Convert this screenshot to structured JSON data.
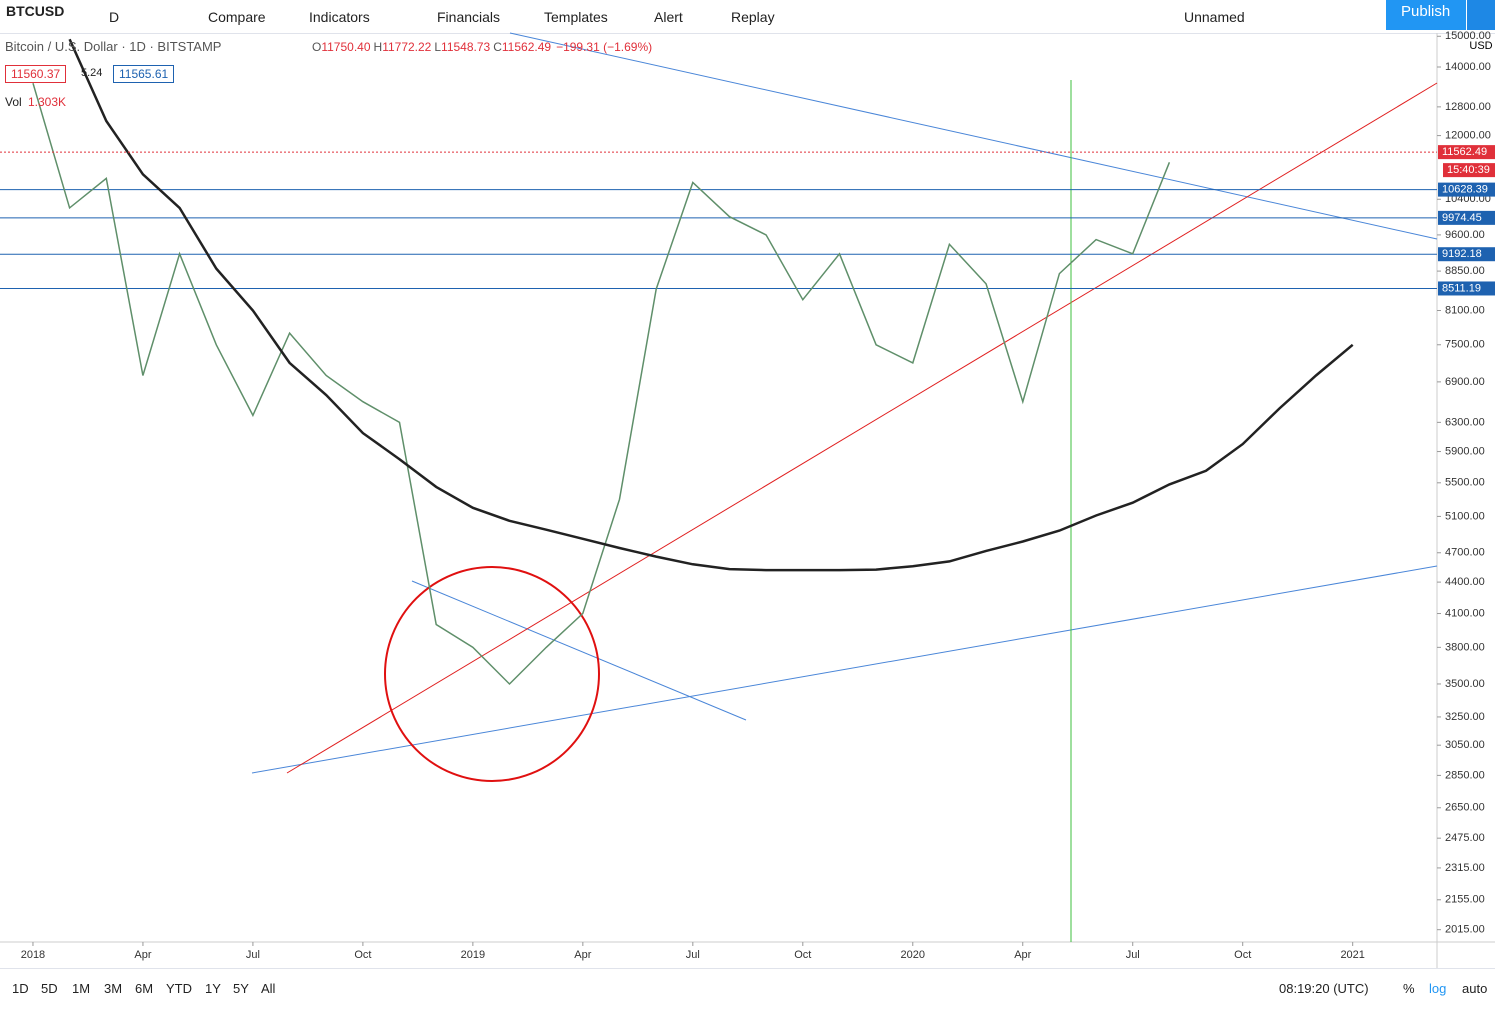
{
  "toolbar": {
    "symbol": "BTCUSD",
    "interval": "D",
    "items": [
      "Compare",
      "Indicators",
      "Financials",
      "Templates",
      "Alert",
      "Replay"
    ],
    "layout_name": "Unnamed",
    "publish": "Publish"
  },
  "legend": {
    "title": "Bitcoin / U.S. Dollar · 1D · BITSTAMP",
    "ohlc": [
      {
        "key": "O",
        "value": "11750.40"
      },
      {
        "key": "H",
        "value": "11772.22"
      },
      {
        "key": "L",
        "value": "11548.73"
      },
      {
        "key": "C",
        "value": "11562.49"
      }
    ],
    "change": "−199.31 (−1.69%)",
    "bid": "11560.37",
    "spread": "5.24",
    "ask": "11565.61",
    "vol_label": "Vol",
    "vol_value": "1.303K",
    "currency": "USD"
  },
  "chart_data": {
    "type": "line",
    "log_scale": true,
    "grid": false,
    "x": [
      "2018-01",
      "2018-02",
      "2018-03",
      "2018-04",
      "2018-05",
      "2018-06",
      "2018-07",
      "2018-08",
      "2018-09",
      "2018-10",
      "2018-11",
      "2018-12",
      "2019-01",
      "2019-02",
      "2019-03",
      "2019-04",
      "2019-05",
      "2019-06",
      "2019-07",
      "2019-08",
      "2019-09",
      "2019-10",
      "2019-11",
      "2019-12",
      "2020-01",
      "2020-02",
      "2020-03",
      "2020-04",
      "2020-05",
      "2020-06",
      "2020-07",
      "2020-08",
      "2020-09",
      "2020-10",
      "2020-11",
      "2020-12",
      "2021-01"
    ],
    "series": [
      {
        "name": "BTCUSD",
        "color": "#5f8f6a",
        "values": [
          13500,
          10200,
          10900,
          7000,
          9200,
          7500,
          6400,
          7700,
          7000,
          6600,
          6300,
          4000,
          3800,
          3500,
          3800,
          4100,
          5300,
          8500,
          10800,
          10000,
          9600,
          8300,
          9200,
          7500,
          7200,
          9400,
          8600,
          6600,
          8800,
          9500,
          9200,
          11300,
          null,
          null,
          null,
          null,
          null
        ]
      },
      {
        "name": "MA",
        "color": "#222222",
        "values": [
          null,
          14900,
          12400,
          11000,
          10200,
          8900,
          8100,
          7200,
          6700,
          6150,
          5800,
          5450,
          5200,
          5050,
          4950,
          4850,
          4750,
          4660,
          4580,
          4530,
          4520,
          4520,
          4520,
          4525,
          4560,
          4610,
          4720,
          4820,
          4940,
          5110,
          5260,
          5480,
          5650,
          6000,
          6500,
          7000,
          7500
        ]
      }
    ],
    "xlim": [
      "2017-12",
      "2021-03"
    ],
    "ylim": [
      1960,
      15111
    ],
    "xticks": [
      {
        "value": "2018-01",
        "label": "2018"
      },
      {
        "value": "2018-04",
        "label": "Apr"
      },
      {
        "value": "2018-07",
        "label": "Jul"
      },
      {
        "value": "2018-10",
        "label": "Oct"
      },
      {
        "value": "2019-01",
        "label": "2019"
      },
      {
        "value": "2019-04",
        "label": "Apr"
      },
      {
        "value": "2019-07",
        "label": "Jul"
      },
      {
        "value": "2019-10",
        "label": "Oct"
      },
      {
        "value": "2020-01",
        "label": "2020"
      },
      {
        "value": "2020-04",
        "label": "Apr"
      },
      {
        "value": "2020-07",
        "label": "Jul"
      },
      {
        "value": "2020-10",
        "label": "Oct"
      },
      {
        "value": "2021-01",
        "label": "2021"
      }
    ],
    "yticks": [
      {
        "value": 15000,
        "label": "15000.00"
      },
      {
        "value": 14000,
        "label": "14000.00"
      },
      {
        "value": 12800,
        "label": "12800.00"
      },
      {
        "value": 12000,
        "label": "12000.00"
      },
      {
        "value": 10400,
        "label": "10400.00"
      },
      {
        "value": 9600,
        "label": "9600.00"
      },
      {
        "value": 8850,
        "label": "8850.00"
      },
      {
        "value": 8100,
        "label": "8100.00"
      },
      {
        "value": 7500,
        "label": "7500.00"
      },
      {
        "value": 6900,
        "label": "6900.00"
      },
      {
        "value": 6300,
        "label": "6300.00"
      },
      {
        "value": 5900,
        "label": "5900.00"
      },
      {
        "value": 5500,
        "label": "5500.00"
      },
      {
        "value": 5100,
        "label": "5100.00"
      },
      {
        "value": 4700,
        "label": "4700.00"
      },
      {
        "value": 4400,
        "label": "4400.00"
      },
      {
        "value": 4100,
        "label": "4100.00"
      },
      {
        "value": 3800,
        "label": "3800.00"
      },
      {
        "value": 3500,
        "label": "3500.00"
      },
      {
        "value": 3250,
        "label": "3250.00"
      },
      {
        "value": 3050,
        "label": "3050.00"
      },
      {
        "value": 2850,
        "label": "2850.00"
      },
      {
        "value": 2650,
        "label": "2650.00"
      },
      {
        "value": 2475,
        "label": "2475.00"
      },
      {
        "value": 2315,
        "label": "2315.00"
      },
      {
        "value": 2155,
        "label": "2155.00"
      },
      {
        "value": 2015,
        "label": "2015.00"
      }
    ],
    "levels": [
      10628.39,
      9974.45,
      9192.18,
      8511.19
    ],
    "level_color": "#1e62b0",
    "last_price": 11562.49,
    "last_price_color": "#e0303a",
    "countdown": "15:40:39"
  },
  "bottom_bar": {
    "ranges": [
      "1D",
      "5D",
      "1M",
      "3M",
      "6M",
      "YTD",
      "1Y",
      "5Y",
      "All"
    ],
    "clock": "08:19:20 (UTC)",
    "percent": "%",
    "log": "log",
    "auto": "auto"
  }
}
